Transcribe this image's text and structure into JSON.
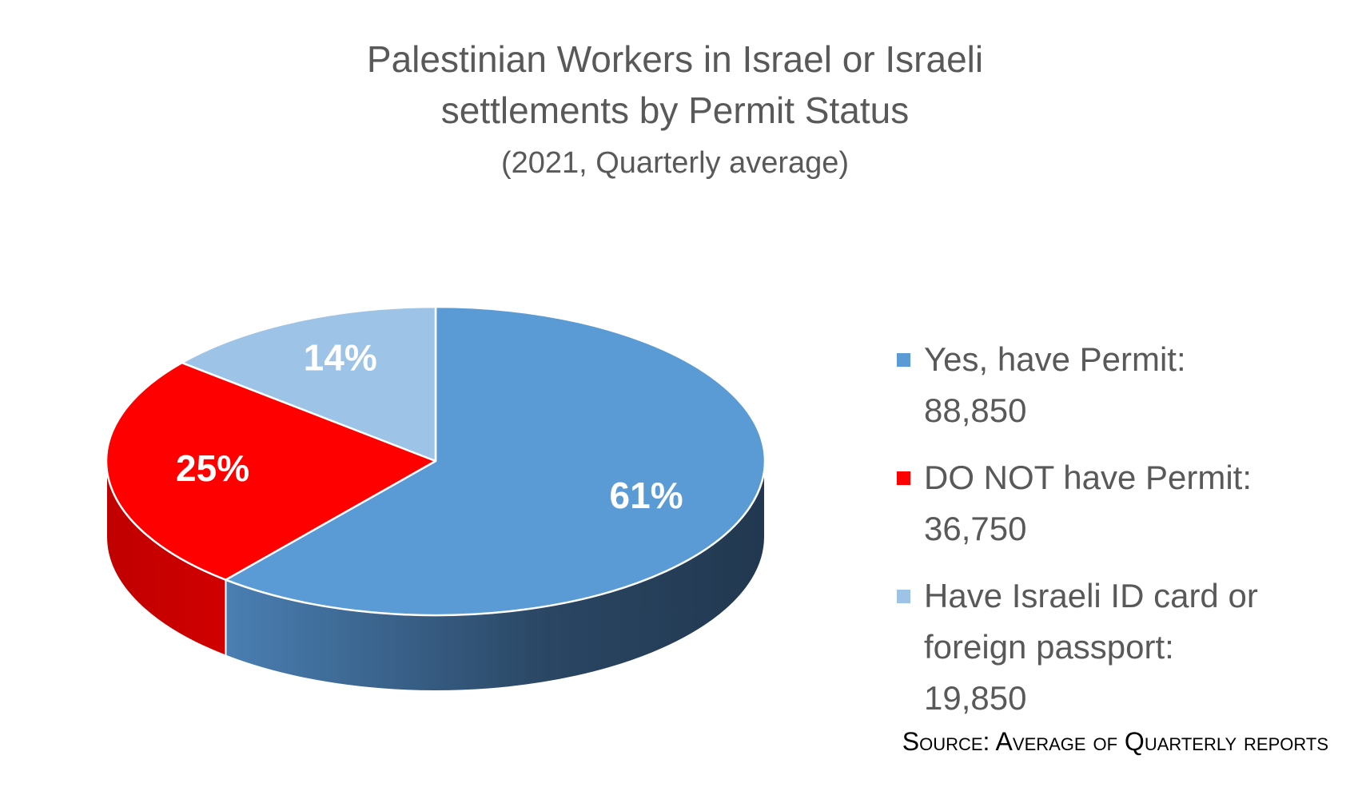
{
  "chart_data": {
    "type": "pie",
    "title": "Palestinian Workers in Israel or Israeli settlements by Permit Status",
    "subtitle": "(2021, Quarterly average)",
    "categories": [
      "Yes, have Permit: 88,850",
      "DO NOT have Permit: 36,750",
      "Have Israeli ID card or foreign passport: 19,850"
    ],
    "values": [
      61,
      25,
      14
    ],
    "value_labels": [
      "61%",
      "25%",
      "14%"
    ],
    "colors": [
      "#5b9bd5",
      "#ff0000",
      "#9dc3e6"
    ],
    "legend": "right",
    "source": "Source: Average of Quarterly reports"
  }
}
